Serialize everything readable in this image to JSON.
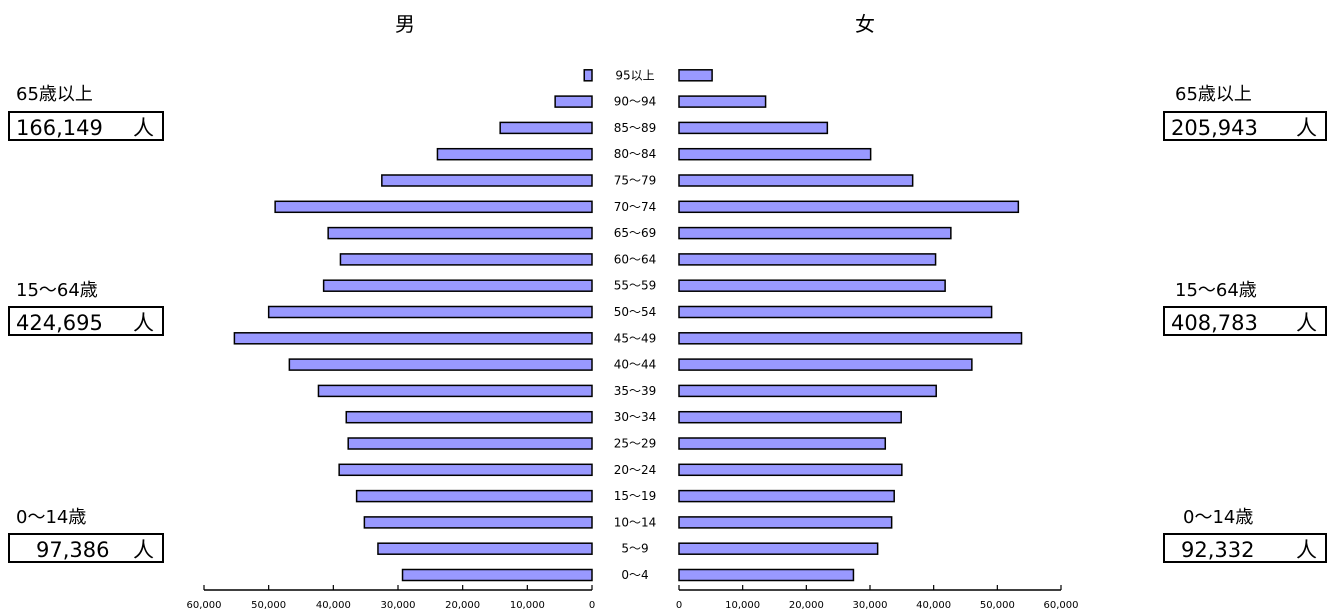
{
  "chart_data": {
    "type": "bar",
    "subtype": "population-pyramid",
    "categories": [
      "0～4",
      "5～9",
      "10～14",
      "15～19",
      "20～24",
      "25～29",
      "30～34",
      "35～39",
      "40～44",
      "45～49",
      "50～54",
      "55～59",
      "60～64",
      "65～69",
      "70～74",
      "75～79",
      "80～84",
      "85～89",
      "90～94",
      "95以上"
    ],
    "series": [
      {
        "name": "男",
        "values": [
          29300,
          33100,
          35200,
          36400,
          39100,
          37700,
          38000,
          42300,
          46800,
          55300,
          50000,
          41500,
          38900,
          40800,
          49000,
          32500,
          23900,
          14200,
          5700,
          1200
        ]
      },
      {
        "name": "女",
        "values": [
          27400,
          31200,
          33400,
          33800,
          35000,
          32400,
          34900,
          40400,
          46000,
          53800,
          49100,
          41800,
          40300,
          42700,
          53300,
          36700,
          30100,
          23300,
          13600,
          5200
        ]
      }
    ],
    "male_ticks": [
      "60,000",
      "50,000",
      "40,000",
      "30,000",
      "20,000",
      "10,000",
      "0"
    ],
    "female_ticks": [
      "0",
      "10,000",
      "20,000",
      "30,000",
      "40,000",
      "50,000",
      "60,000"
    ],
    "xlim": [
      0,
      60000
    ],
    "bar_color": "#9999ff",
    "grid": false
  },
  "labels": {
    "male": "男",
    "female": "女",
    "unit": "人"
  },
  "summary": {
    "male": [
      {
        "label": "65歳以上",
        "value": "166,149"
      },
      {
        "label": "15～64歳",
        "value": "424,695"
      },
      {
        "label": "0～14歳",
        "value": "97,386"
      }
    ],
    "female": [
      {
        "label": "65歳以上",
        "value": "205,943"
      },
      {
        "label": "15～64歳",
        "value": "408,783"
      },
      {
        "label": "0～14歳",
        "value": "92,332"
      }
    ]
  }
}
